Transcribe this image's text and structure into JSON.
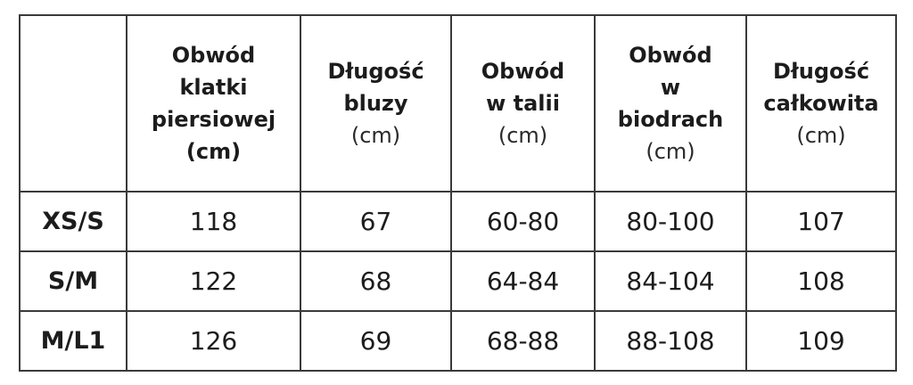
{
  "table": {
    "columns": [
      {
        "lines": [
          "Obwód",
          "klatki",
          "piersiowej",
          "(cm)"
        ],
        "unit": ""
      },
      {
        "lines": [
          "Długość",
          "bluzy"
        ],
        "unit": "(cm)"
      },
      {
        "lines": [
          "Obwód",
          "w talii"
        ],
        "unit": "(cm)"
      },
      {
        "lines": [
          "Obwód",
          "w",
          "biodrach"
        ],
        "unit": "(cm)"
      },
      {
        "lines": [
          "Długość",
          "całkowita"
        ],
        "unit": "(cm)"
      }
    ],
    "rows": [
      {
        "label": "XS/S",
        "values": [
          "118",
          "67",
          "60-80",
          "80-100",
          "107"
        ]
      },
      {
        "label": "S/M",
        "values": [
          "122",
          "68",
          "64-84",
          "84-104",
          "108"
        ]
      },
      {
        "label": "M/L1",
        "values": [
          "126",
          "69",
          "68-88",
          "88-108",
          "109"
        ]
      }
    ]
  }
}
